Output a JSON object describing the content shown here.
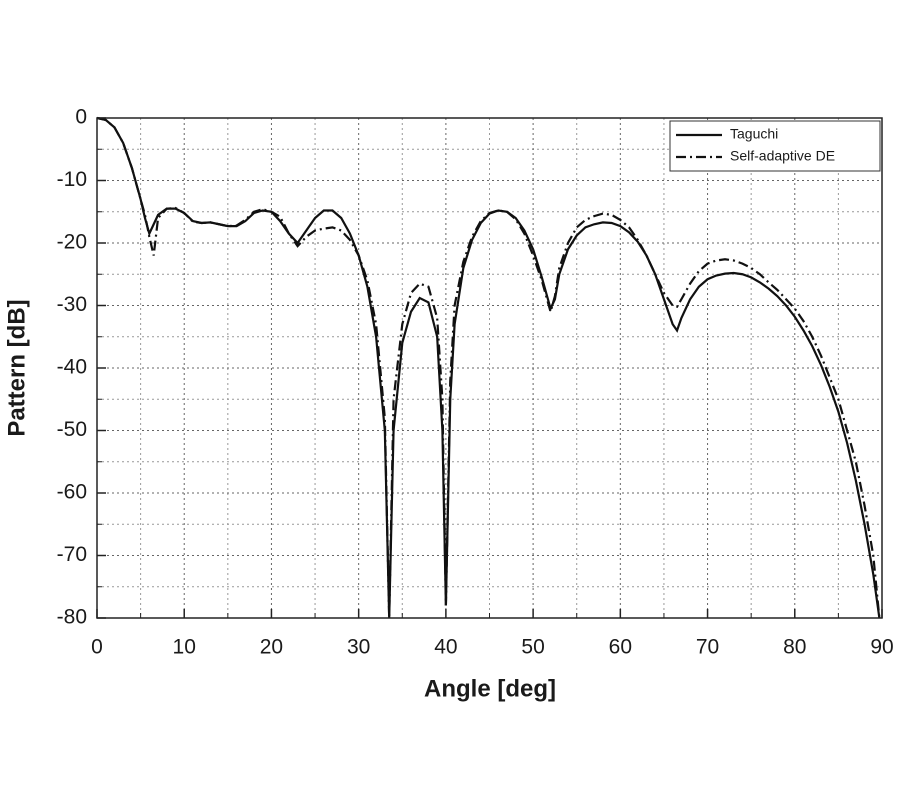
{
  "chart_data": {
    "type": "line",
    "xlabel": "Angle [deg]",
    "ylabel": "Pattern [dB]",
    "x": [
      0,
      1,
      2,
      3,
      4,
      5,
      5.5,
      6,
      6.5,
      7,
      8,
      9,
      10,
      11,
      12,
      13,
      14,
      15,
      16,
      17,
      18,
      19,
      20,
      21,
      22,
      23,
      24,
      25,
      26,
      27,
      28,
      29,
      30,
      31,
      32,
      33,
      33.5,
      34,
      35,
      36,
      37,
      38,
      39,
      39.6,
      40,
      40.5,
      41,
      42,
      43,
      44,
      45,
      46,
      47,
      48,
      49,
      50,
      51,
      52,
      52.5,
      53,
      54,
      55,
      56,
      57,
      58,
      59,
      60,
      61,
      62,
      63,
      64,
      65,
      66,
      66.5,
      67,
      68,
      69,
      70,
      71,
      72,
      73,
      74,
      75,
      76,
      77,
      78,
      79,
      80,
      81,
      82,
      83,
      84,
      85,
      86,
      87,
      88,
      89,
      89.7
    ],
    "series": [
      {
        "name": "Taguchi",
        "color": "#111111",
        "linestyle": "solid",
        "values": [
          0,
          -0.3,
          -1.5,
          -4,
          -8,
          -13,
          -16,
          -18.5,
          -17,
          -15.5,
          -14.5,
          -14.5,
          -15.2,
          -16.5,
          -16.8,
          -16.7,
          -17,
          -17.3,
          -17.3,
          -16.5,
          -15.2,
          -14.8,
          -15,
          -16.5,
          -18.5,
          -20,
          -18,
          -16,
          -14.8,
          -14.8,
          -16,
          -18.5,
          -22,
          -27,
          -35,
          -50,
          -80,
          -50,
          -36,
          -31,
          -28.8,
          -29.5,
          -35,
          -50,
          -78,
          -45,
          -33,
          -24,
          -19.5,
          -16.8,
          -15.3,
          -14.8,
          -15,
          -16,
          -18,
          -21,
          -25.5,
          -30.5,
          -29,
          -25,
          -21,
          -18.8,
          -17.5,
          -17,
          -16.7,
          -16.8,
          -17.3,
          -18.3,
          -19.8,
          -22,
          -25,
          -29,
          -33,
          -34,
          -32,
          -29,
          -27,
          -25.8,
          -25.2,
          -24.9,
          -24.8,
          -25,
          -25.5,
          -26.3,
          -27.3,
          -28.5,
          -30,
          -31.8,
          -34,
          -36.5,
          -39.5,
          -43,
          -47,
          -52,
          -58,
          -65,
          -73,
          -80
        ]
      },
      {
        "name": "Self-adaptive DE",
        "color": "#111111",
        "linestyle": "dashdot",
        "values": [
          0,
          -0.3,
          -1.5,
          -4,
          -8,
          -13,
          -15.5,
          -19,
          -22,
          -16,
          -14.5,
          -14.4,
          -15.2,
          -16.6,
          -16.8,
          -16.7,
          -17,
          -17.3,
          -17.2,
          -16.3,
          -15,
          -14.6,
          -15,
          -15.8,
          -18.5,
          -20.5,
          -19,
          -18,
          -17.7,
          -17.5,
          -18,
          -19.5,
          -22,
          -26,
          -33,
          -48,
          -80,
          -45,
          -33,
          -28,
          -26.5,
          -27,
          -32,
          -45,
          -78,
          -42,
          -30,
          -23,
          -19,
          -16.5,
          -15.2,
          -14.8,
          -15,
          -16.2,
          -18.5,
          -22,
          -26,
          -31,
          -28.5,
          -24,
          -20,
          -17.5,
          -16.3,
          -15.7,
          -15.3,
          -15.5,
          -16.3,
          -17.5,
          -19.5,
          -22,
          -25,
          -28,
          -30,
          -30.2,
          -29,
          -26.5,
          -24.5,
          -23.3,
          -22.8,
          -22.6,
          -22.8,
          -23.3,
          -24,
          -25,
          -26.3,
          -27.5,
          -29,
          -30.5,
          -32.5,
          -35,
          -38,
          -41.5,
          -45,
          -50,
          -55,
          -62,
          -70,
          -80
        ]
      }
    ],
    "xlim": [
      0,
      90
    ],
    "xticks": [
      0,
      10,
      20,
      30,
      40,
      50,
      60,
      70,
      80,
      90
    ],
    "ylim": [
      -80,
      0
    ],
    "yticks": [
      0,
      -10,
      -20,
      -30,
      -40,
      -50,
      -60,
      -70,
      -80
    ],
    "grid": true,
    "legend": "upper right"
  }
}
